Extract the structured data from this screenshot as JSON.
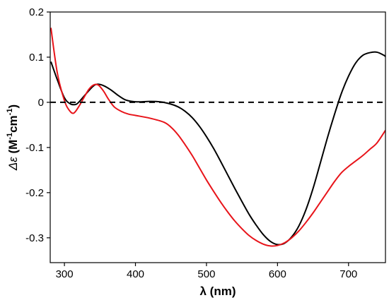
{
  "chart_data": {
    "type": "line",
    "title": "",
    "xlabel": "λ (nm)",
    "ylabel_symbol": "Δε",
    "ylabel_units_open": " (M",
    "ylabel_units_sup1": "-1",
    "ylabel_units_mid": "cm",
    "ylabel_units_sup2": "-1",
    "ylabel_units_close": ")",
    "xlim": [
      280,
      752
    ],
    "ylim": [
      -0.355,
      0.2
    ],
    "x_ticks": [
      300,
      400,
      500,
      600,
      700
    ],
    "x_tick_labels": [
      "300",
      "400",
      "500",
      "600",
      "700"
    ],
    "y_ticks": [
      0.2,
      0.1,
      0,
      -0.1,
      -0.2,
      -0.3
    ],
    "y_tick_labels": [
      "0.2",
      "0.1",
      "0",
      "-0.1",
      "-0.2",
      "-0.3"
    ],
    "grid": false,
    "legend": "none",
    "reference_line": {
      "y": 0,
      "style": "dashed",
      "color": "#000000"
    },
    "series": [
      {
        "color": "#000000",
        "x": [
          281,
          290,
          300,
          308,
          315,
          320,
          330,
          340,
          346,
          355,
          365,
          375,
          385,
          395,
          405,
          420,
          435,
          450,
          460,
          470,
          480,
          490,
          500,
          510,
          520,
          530,
          540,
          550,
          560,
          570,
          580,
          590,
          600,
          610,
          620,
          630,
          640,
          650,
          660,
          670,
          680,
          690,
          700,
          710,
          720,
          730,
          740,
          750,
          752
        ],
        "y": [
          0.09,
          0.05,
          0.01,
          -0.003,
          -0.005,
          0.0,
          0.018,
          0.035,
          0.04,
          0.037,
          0.028,
          0.016,
          0.006,
          0.002,
          0.001,
          0.002,
          0.001,
          -0.004,
          -0.01,
          -0.02,
          -0.034,
          -0.053,
          -0.076,
          -0.102,
          -0.131,
          -0.161,
          -0.191,
          -0.22,
          -0.248,
          -0.272,
          -0.293,
          -0.308,
          -0.315,
          -0.312,
          -0.298,
          -0.274,
          -0.238,
          -0.191,
          -0.136,
          -0.08,
          -0.028,
          0.02,
          0.058,
          0.087,
          0.104,
          0.11,
          0.111,
          0.104,
          0.101
        ]
      },
      {
        "color": "#e8141a",
        "x": [
          281,
          290,
          300,
          307,
          313,
          320,
          328,
          335,
          342,
          348,
          355,
          362,
          370,
          380,
          390,
          400,
          420,
          440,
          450,
          460,
          470,
          480,
          490,
          500,
          510,
          520,
          530,
          540,
          550,
          560,
          570,
          580,
          590,
          600,
          610,
          620,
          630,
          640,
          650,
          660,
          670,
          680,
          690,
          700,
          710,
          720,
          730,
          740,
          752
        ],
        "y": [
          0.165,
          0.065,
          0.004,
          -0.018,
          -0.024,
          -0.01,
          0.012,
          0.03,
          0.039,
          0.038,
          0.025,
          0.007,
          -0.01,
          -0.02,
          -0.026,
          -0.029,
          -0.035,
          -0.044,
          -0.055,
          -0.072,
          -0.094,
          -0.118,
          -0.145,
          -0.172,
          -0.197,
          -0.221,
          -0.243,
          -0.263,
          -0.28,
          -0.295,
          -0.306,
          -0.314,
          -0.318,
          -0.317,
          -0.311,
          -0.3,
          -0.285,
          -0.266,
          -0.245,
          -0.222,
          -0.199,
          -0.176,
          -0.156,
          -0.142,
          -0.13,
          -0.118,
          -0.104,
          -0.09,
          -0.062
        ]
      }
    ]
  }
}
